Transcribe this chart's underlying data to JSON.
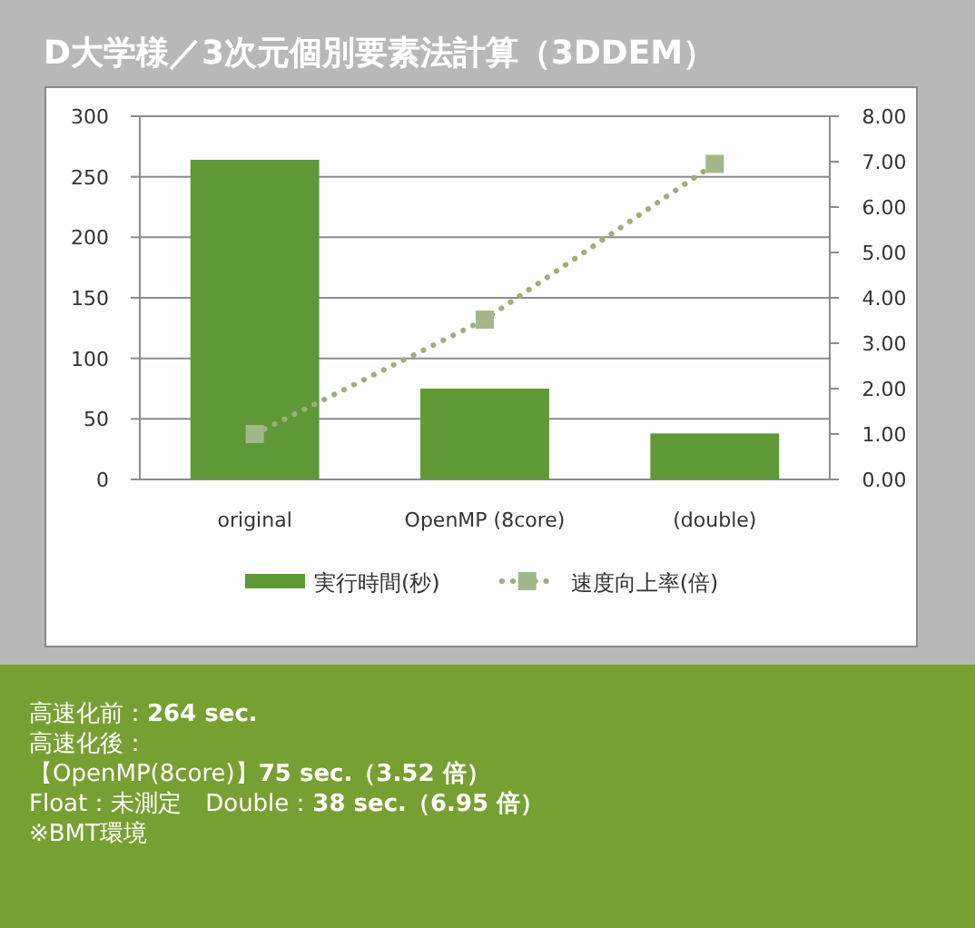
{
  "chart_data": {
    "type": "bar",
    "title": "D大学様／3次元個別要素法計算（3DDEM）",
    "categories": [
      "original",
      "OpenMP (8core)",
      "(double)"
    ],
    "series": [
      {
        "name": "実行時間(秒)",
        "color": "#5f9937",
        "values": [
          264,
          75,
          38
        ]
      },
      {
        "name": "速度向上率(倍)",
        "type": "line",
        "axis": "y2",
        "color": "#a3b88a",
        "marker": "square",
        "line_style": "dotted",
        "values": [
          1.0,
          3.52,
          6.95
        ]
      }
    ],
    "ylim": [
      0,
      300
    ],
    "yticks": [
      0,
      50,
      100,
      150,
      200,
      250,
      300
    ],
    "y2lim": [
      0,
      8
    ],
    "y2ticks": [
      {
        "value": 0,
        "label": "0.00"
      },
      {
        "value": 1,
        "label": "1.00"
      },
      {
        "value": 2,
        "label": "2.00"
      },
      {
        "value": 3,
        "label": "3.00"
      },
      {
        "value": 4,
        "label": "4.00"
      },
      {
        "value": 5,
        "label": "5.00"
      },
      {
        "value": 6,
        "label": "6.00"
      },
      {
        "value": 7,
        "label": "7.00"
      },
      {
        "value": 8,
        "label": "8.00"
      }
    ],
    "grid": "y",
    "legend": "bottom",
    "annotations": [
      "高速化前：264 sec.",
      "高速化後：",
      "【OpenMP(8core)】75 sec.（3.52 倍）",
      "Float：未測定　Double：38 sec.（6.95 倍）",
      "※BMT環境"
    ]
  }
}
